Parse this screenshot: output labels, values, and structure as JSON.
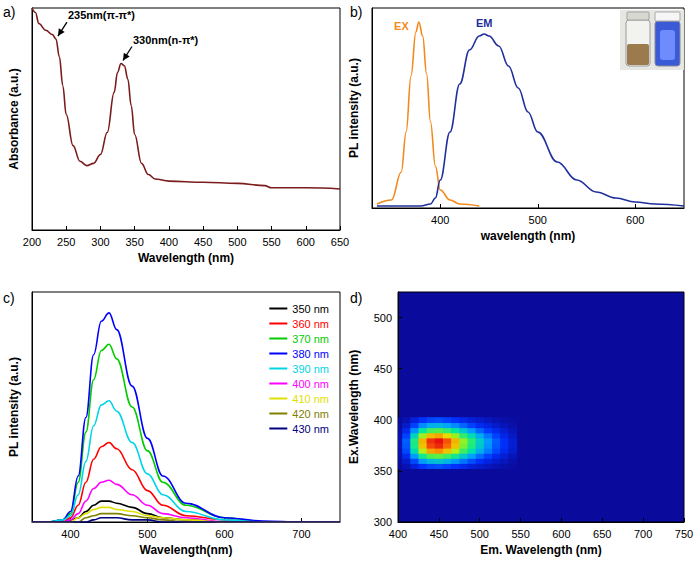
{
  "chart_data": [
    {
      "type": "line",
      "title": "a)",
      "xlabel": "Wavelength (nm)",
      "ylabel": "Absorbance (a.u.)",
      "x": [
        200,
        205,
        210,
        220,
        230,
        235,
        240,
        245,
        250,
        260,
        270,
        280,
        290,
        300,
        310,
        320,
        325,
        330,
        335,
        340,
        345,
        350,
        360,
        370,
        380,
        400,
        450,
        500,
        540,
        550,
        600,
        650
      ],
      "values": [
        1.0,
        0.98,
        0.93,
        0.9,
        0.88,
        0.86,
        0.78,
        0.65,
        0.52,
        0.38,
        0.31,
        0.29,
        0.3,
        0.34,
        0.44,
        0.62,
        0.71,
        0.75,
        0.74,
        0.68,
        0.56,
        0.43,
        0.3,
        0.25,
        0.23,
        0.22,
        0.215,
        0.21,
        0.2,
        0.19,
        0.19,
        0.185
      ],
      "color": "#7b1c1c",
      "xlim": [
        200,
        650
      ],
      "xticks": [
        200,
        250,
        300,
        350,
        400,
        450,
        500,
        550,
        600,
        650
      ],
      "ylim": [
        0,
        1
      ],
      "tick_labels": "x",
      "grid": false,
      "annotations": [
        {
          "text": "235nm(π-π*)",
          "x": 235,
          "y": 0.86
        },
        {
          "text": "330nm(n-π*)",
          "x": 330,
          "y": 0.75
        }
      ]
    },
    {
      "type": "line",
      "title": "b)",
      "xlabel": "wavelength (nm)",
      "ylabel": "PL intensity (a.u.)",
      "xlim": [
        330,
        650
      ],
      "xticks": [
        400,
        500,
        600
      ],
      "ylim": [
        0,
        1
      ],
      "tick_labels": "x",
      "grid": false,
      "series": [
        {
          "name": "EX",
          "color": "#f28a1e",
          "x": [
            335,
            350,
            360,
            365,
            370,
            375,
            378,
            382,
            386,
            390,
            395,
            400,
            410,
            420,
            440
          ],
          "values": [
            0.02,
            0.04,
            0.18,
            0.38,
            0.66,
            0.88,
            0.93,
            0.86,
            0.67,
            0.43,
            0.21,
            0.09,
            0.04,
            0.02,
            0.01
          ]
        },
        {
          "name": "EM",
          "color": "#1f2f9c",
          "x": [
            335,
            380,
            390,
            395,
            400,
            410,
            420,
            430,
            440,
            445,
            450,
            460,
            470,
            480,
            490,
            500,
            520,
            540,
            560,
            580,
            600,
            620,
            650
          ],
          "values": [
            0.01,
            0.01,
            0.02,
            0.05,
            0.14,
            0.38,
            0.62,
            0.79,
            0.86,
            0.87,
            0.86,
            0.81,
            0.71,
            0.6,
            0.48,
            0.38,
            0.23,
            0.14,
            0.08,
            0.05,
            0.03,
            0.02,
            0.01
          ]
        }
      ]
    },
    {
      "type": "line",
      "title": "c)",
      "xlabel": "Wavelength(nm)",
      "ylabel": "PL intensity (a.u.)",
      "x": [
        350,
        370,
        390,
        400,
        410,
        420,
        430,
        440,
        450,
        460,
        480,
        500,
        520,
        550,
        600,
        650,
        700,
        750
      ],
      "xlim": [
        350,
        750
      ],
      "xticks": [
        400,
        500,
        600,
        700
      ],
      "ylim": [
        0,
        1.1
      ],
      "tick_labels": "x",
      "grid": false,
      "legend": "top-right",
      "series": [
        {
          "name": "350 nm",
          "color": "#000000",
          "values": [
            0,
            0,
            0,
            0.01,
            0.02,
            0.05,
            0.08,
            0.1,
            0.1,
            0.09,
            0.07,
            0.04,
            0.02,
            0.01,
            0,
            0,
            0,
            0
          ]
        },
        {
          "name": "360 nm",
          "color": "#ff0000",
          "values": [
            0,
            0,
            0,
            0.02,
            0.08,
            0.19,
            0.3,
            0.36,
            0.38,
            0.35,
            0.25,
            0.15,
            0.08,
            0.03,
            0.01,
            0,
            0,
            0
          ]
        },
        {
          "name": "370 nm",
          "color": "#00cc00",
          "values": [
            0,
            0,
            0.01,
            0.04,
            0.19,
            0.43,
            0.68,
            0.82,
            0.85,
            0.78,
            0.55,
            0.34,
            0.19,
            0.08,
            0.02,
            0,
            0,
            0
          ]
        },
        {
          "name": "380 nm",
          "color": "#0000ff",
          "values": [
            0,
            0,
            0.01,
            0.05,
            0.22,
            0.5,
            0.8,
            0.96,
            1.0,
            0.92,
            0.65,
            0.4,
            0.22,
            0.09,
            0.02,
            0.005,
            0,
            0
          ]
        },
        {
          "name": "390 nm",
          "color": "#00d5e5",
          "values": [
            0,
            0,
            0.01,
            0.03,
            0.13,
            0.29,
            0.46,
            0.56,
            0.58,
            0.53,
            0.38,
            0.23,
            0.13,
            0.05,
            0.01,
            0,
            0,
            0
          ]
        },
        {
          "name": "400 nm",
          "color": "#ff00ff",
          "values": [
            0,
            0,
            0,
            0.01,
            0.04,
            0.1,
            0.16,
            0.19,
            0.2,
            0.18,
            0.13,
            0.08,
            0.04,
            0.02,
            0,
            0,
            0,
            0
          ]
        },
        {
          "name": "410 nm",
          "color": "#e0e000",
          "values": [
            0,
            0,
            0,
            0,
            0.02,
            0.04,
            0.06,
            0.07,
            0.07,
            0.06,
            0.05,
            0.03,
            0.02,
            0.01,
            0,
            0,
            0,
            0
          ]
        },
        {
          "name": "420 nm",
          "color": "#808000",
          "values": [
            0,
            0,
            0,
            0,
            0,
            0.02,
            0.03,
            0.04,
            0.04,
            0.04,
            0.03,
            0.02,
            0.01,
            0,
            0,
            0,
            0,
            0
          ]
        },
        {
          "name": "430 nm",
          "color": "#000080",
          "values": [
            0,
            0,
            0,
            0,
            0,
            0,
            0.01,
            0.02,
            0.02,
            0.02,
            0.01,
            0.01,
            0,
            0,
            0,
            0,
            0,
            0
          ]
        }
      ]
    },
    {
      "type": "heatmap",
      "title": "d)",
      "xlabel": "Em. Wavelength (nm)",
      "ylabel": "Ex.Wavelength (nm)",
      "x": [
        400,
        410,
        420,
        430,
        440,
        450,
        460,
        470,
        480,
        490,
        500,
        510,
        520,
        530,
        540
      ],
      "y": [
        355,
        360,
        365,
        370,
        375,
        380,
        385,
        390,
        395,
        400
      ],
      "values": [
        [
          0.01,
          0.04,
          0.1,
          0.16,
          0.19,
          0.2,
          0.18,
          0.16,
          0.13,
          0.1,
          0.08,
          0.06,
          0.04,
          0.03,
          0.02
        ],
        [
          0.02,
          0.08,
          0.19,
          0.3,
          0.36,
          0.38,
          0.35,
          0.3,
          0.25,
          0.2,
          0.15,
          0.11,
          0.08,
          0.06,
          0.03
        ],
        [
          0.03,
          0.13,
          0.3,
          0.48,
          0.58,
          0.6,
          0.55,
          0.48,
          0.39,
          0.31,
          0.24,
          0.18,
          0.13,
          0.09,
          0.05
        ],
        [
          0.04,
          0.19,
          0.43,
          0.68,
          0.82,
          0.85,
          0.78,
          0.68,
          0.55,
          0.44,
          0.34,
          0.26,
          0.19,
          0.13,
          0.08
        ],
        [
          0.05,
          0.21,
          0.49,
          0.78,
          0.93,
          0.97,
          0.89,
          0.78,
          0.63,
          0.5,
          0.39,
          0.29,
          0.21,
          0.15,
          0.09
        ],
        [
          0.05,
          0.22,
          0.5,
          0.8,
          0.96,
          1.0,
          0.92,
          0.8,
          0.65,
          0.52,
          0.4,
          0.3,
          0.22,
          0.15,
          0.09
        ],
        [
          0.04,
          0.18,
          0.41,
          0.66,
          0.79,
          0.82,
          0.75,
          0.66,
          0.53,
          0.43,
          0.33,
          0.25,
          0.18,
          0.12,
          0.07
        ],
        [
          0.03,
          0.13,
          0.29,
          0.46,
          0.56,
          0.58,
          0.53,
          0.46,
          0.38,
          0.3,
          0.23,
          0.17,
          0.13,
          0.09,
          0.05
        ],
        [
          0.02,
          0.08,
          0.18,
          0.28,
          0.34,
          0.35,
          0.32,
          0.28,
          0.23,
          0.18,
          0.14,
          0.11,
          0.08,
          0.05,
          0.03
        ],
        [
          0.01,
          0.04,
          0.1,
          0.16,
          0.19,
          0.2,
          0.18,
          0.16,
          0.13,
          0.1,
          0.08,
          0.06,
          0.04,
          0.03,
          0.02
        ]
      ],
      "xlim": [
        400,
        750
      ],
      "xticks": [
        400,
        450,
        500,
        550,
        600,
        650,
        700,
        750
      ],
      "ylim": [
        300,
        525
      ],
      "yticks": [
        300,
        350,
        400,
        450,
        500
      ],
      "grid": false
    }
  ]
}
